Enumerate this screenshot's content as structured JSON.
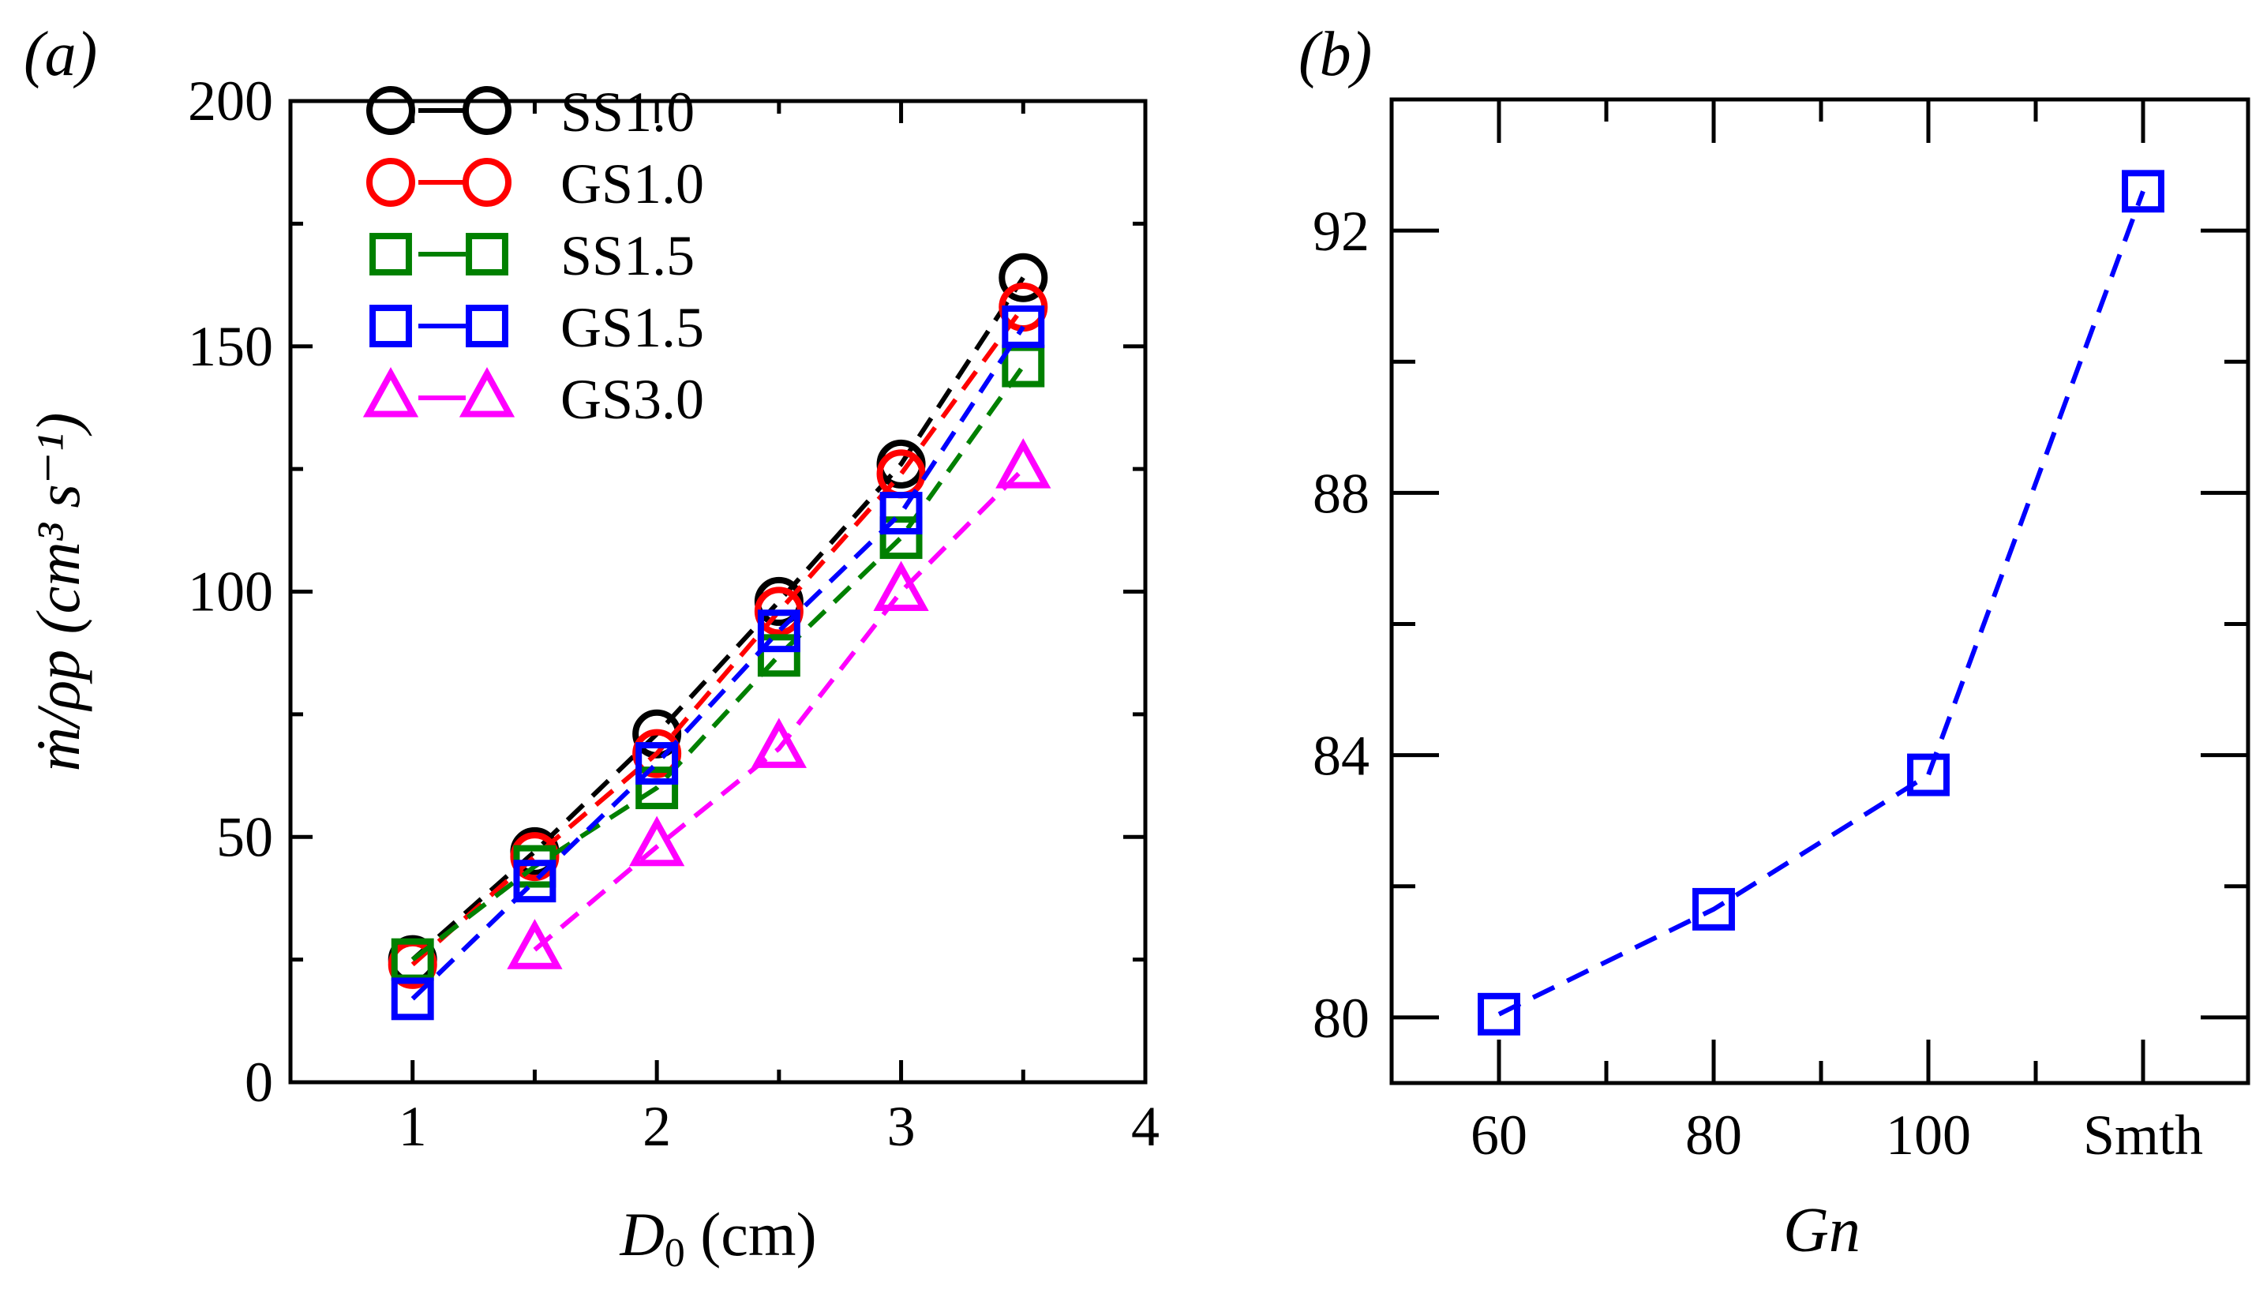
{
  "chart_data": [
    {
      "panel": "(a)",
      "type": "line",
      "title": "",
      "xlabel": "D0 (cm)",
      "ylabel": "ṁ/ρp (cm3 s−1)",
      "xlim": [
        0.5,
        4
      ],
      "ylim": [
        0,
        200
      ],
      "xticks": [
        1,
        2,
        3,
        4
      ],
      "yticks": [
        0,
        50,
        100,
        150,
        200
      ],
      "grid": false,
      "legend_position": "upper left",
      "series": [
        {
          "name": "SS1.0",
          "color": "#000000",
          "marker": "circle",
          "x": [
            1,
            1.5,
            2,
            2.5,
            3,
            3.5
          ],
          "values": [
            25,
            47,
            71,
            98,
            126,
            164
          ]
        },
        {
          "name": "GS1.0",
          "color": "#ff0000",
          "marker": "circle",
          "x": [
            1,
            1.5,
            2,
            2.5,
            3,
            3.5
          ],
          "values": [
            24,
            46,
            67,
            96,
            124,
            158
          ]
        },
        {
          "name": "SS1.5",
          "color": "#008000",
          "marker": "square",
          "x": [
            1,
            1.5,
            2,
            2.5,
            3,
            3.5
          ],
          "values": [
            25,
            44,
            60,
            87,
            111,
            146
          ]
        },
        {
          "name": "GS1.5",
          "color": "#0000ff",
          "marker": "square",
          "x": [
            1,
            1.5,
            2,
            2.5,
            3,
            3.5
          ],
          "values": [
            17,
            41,
            65,
            92,
            116,
            154
          ]
        },
        {
          "name": "GS3.0",
          "color": "#ff00ff",
          "marker": "triangle",
          "x": [
            1.5,
            2,
            2.5,
            3,
            3.5
          ],
          "values": [
            27,
            48,
            68,
            100,
            125
          ]
        }
      ]
    },
    {
      "panel": "(b)",
      "type": "line",
      "title": "",
      "xlabel": "Gn",
      "ylabel": "",
      "categories": [
        "60",
        "80",
        "100",
        "Smth"
      ],
      "ylim": [
        79,
        94
      ],
      "yticks": [
        80,
        84,
        88,
        92
      ],
      "grid": false,
      "series": [
        {
          "name": "GS1.5",
          "color": "#0000ff",
          "marker": "square",
          "values": [
            80.05,
            81.65,
            83.7,
            92.6
          ]
        }
      ]
    }
  ],
  "labels": {
    "panel_a": "(a)",
    "panel_b": "(b)",
    "a_xlabel_main": "D",
    "a_xlabel_sub": "0",
    "a_xlabel_unit": " (cm)",
    "a_ylabel": "ṁ/ρp (cm³ s⁻¹)",
    "b_xlabel": "Gn",
    "a_yticks": [
      "0",
      "50",
      "100",
      "150",
      "200"
    ],
    "a_xticks": [
      "1",
      "2",
      "3",
      "4"
    ],
    "b_yticks": [
      "80",
      "84",
      "88",
      "92"
    ],
    "b_xticks": [
      "60",
      "80",
      "100",
      "Smth"
    ],
    "legend": [
      "SS1.0",
      "GS1.0",
      "SS1.5",
      "GS1.5",
      "GS3.0"
    ]
  }
}
